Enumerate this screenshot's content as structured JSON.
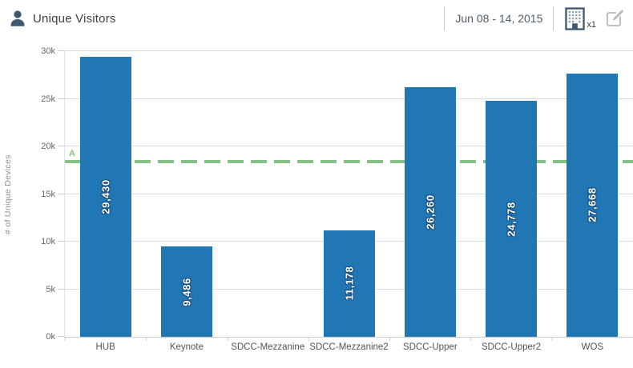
{
  "header": {
    "title": "Unique Visitors",
    "date_range": "Jun 08 - 14, 2015",
    "building_count": "x1",
    "icons": {
      "person_icon": "person silhouette bust",
      "building_icon": "building with windows",
      "edit_icon": "pencil over square"
    }
  },
  "colors": {
    "bar_blue": "#2077b4",
    "bar_label_shadow": "#1b4f7e",
    "avg_green": "#85c285",
    "icon_slate": "#3e5871",
    "edit_icon_gray": "#b4b9be",
    "grid": "#dcdcdc",
    "axis": "#c9ced3",
    "title_text": "#3f3f3f",
    "date_text": "#4e5d6a",
    "tick_text": "#666666"
  },
  "chart_data": {
    "type": "bar",
    "title": "Unique Visitors",
    "categories": [
      "HUB",
      "Keynote",
      "SDCC-Mezzanine",
      "SDCC-Mezzanine2",
      "SDCC-Upper",
      "SDCC-Upper2",
      "WOS"
    ],
    "values": [
      29430,
      9486,
      0,
      11178,
      26260,
      24778,
      27668
    ],
    "bar_labels": [
      "29,430",
      "9,486",
      "",
      "11,178",
      "26,260",
      "24,778",
      "27,668"
    ],
    "xlabel": "",
    "ylabel": "# of Unique Devices",
    "ylim": [
      0,
      30000
    ],
    "ytick_values": [
      0,
      5000,
      10000,
      15000,
      20000,
      25000,
      30000
    ],
    "ytick_labels": [
      "0k",
      "5k",
      "10k",
      "15k",
      "20k",
      "25k",
      "30k"
    ],
    "grid": true,
    "legend": false,
    "bar_color": "#2077b4",
    "reference_line": {
      "value": 18400,
      "style": "dashed",
      "color": "#85c285",
      "visible_label": "A"
    }
  }
}
